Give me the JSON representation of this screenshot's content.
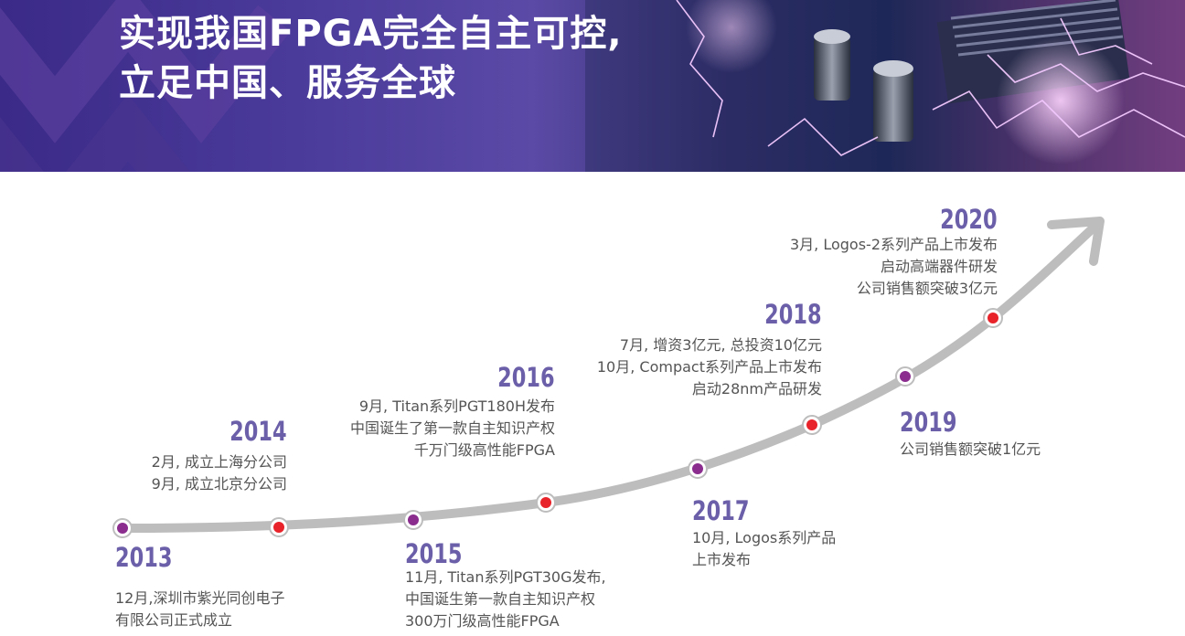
{
  "banner": {
    "title_line1": "实现我国FPGA完全自主可控,",
    "title_line2": "立足中国、服务全球"
  },
  "milestones": [
    {
      "year": "2013",
      "lines": [
        "12月,深圳市紫光同创电子",
        "有限公司正式成立"
      ],
      "dot": "purple"
    },
    {
      "year": "2014",
      "lines": [
        "2月, 成立上海分公司",
        "9月, 成立北京分公司"
      ],
      "dot": "red"
    },
    {
      "year": "2015",
      "lines": [
        "11月, Titan系列PGT30G发布,",
        "中国诞生第一款自主知识产权",
        "300万门级高性能FPGA"
      ],
      "dot": "purple"
    },
    {
      "year": "2016",
      "lines": [
        "9月, Titan系列PGT180H发布",
        "中国诞生了第一款自主知识产权",
        "千万门级高性能FPGA"
      ],
      "dot": "red"
    },
    {
      "year": "2017",
      "lines": [
        "10月, Logos系列产品",
        "上市发布"
      ],
      "dot": "purple"
    },
    {
      "year": "2018",
      "lines": [
        "7月, 增资3亿元, 总投资10亿元",
        "10月, Compact系列产品上市发布",
        "启动28nm产品研发"
      ],
      "dot": "red"
    },
    {
      "year": "2019",
      "lines": [
        "公司销售额突破1亿元"
      ],
      "dot": "purple"
    },
    {
      "year": "2020",
      "lines": [
        "3月, Logos-2系列产品上市发布",
        "启动高端器件研发",
        "公司销售额突破3亿元"
      ],
      "dot": "red"
    }
  ],
  "colors": {
    "year_text": "#6a5fa8",
    "desc_text": "#555555",
    "line": "#bdbdbd",
    "dot_purple": "#8b2d8f",
    "dot_red": "#e8232a"
  }
}
